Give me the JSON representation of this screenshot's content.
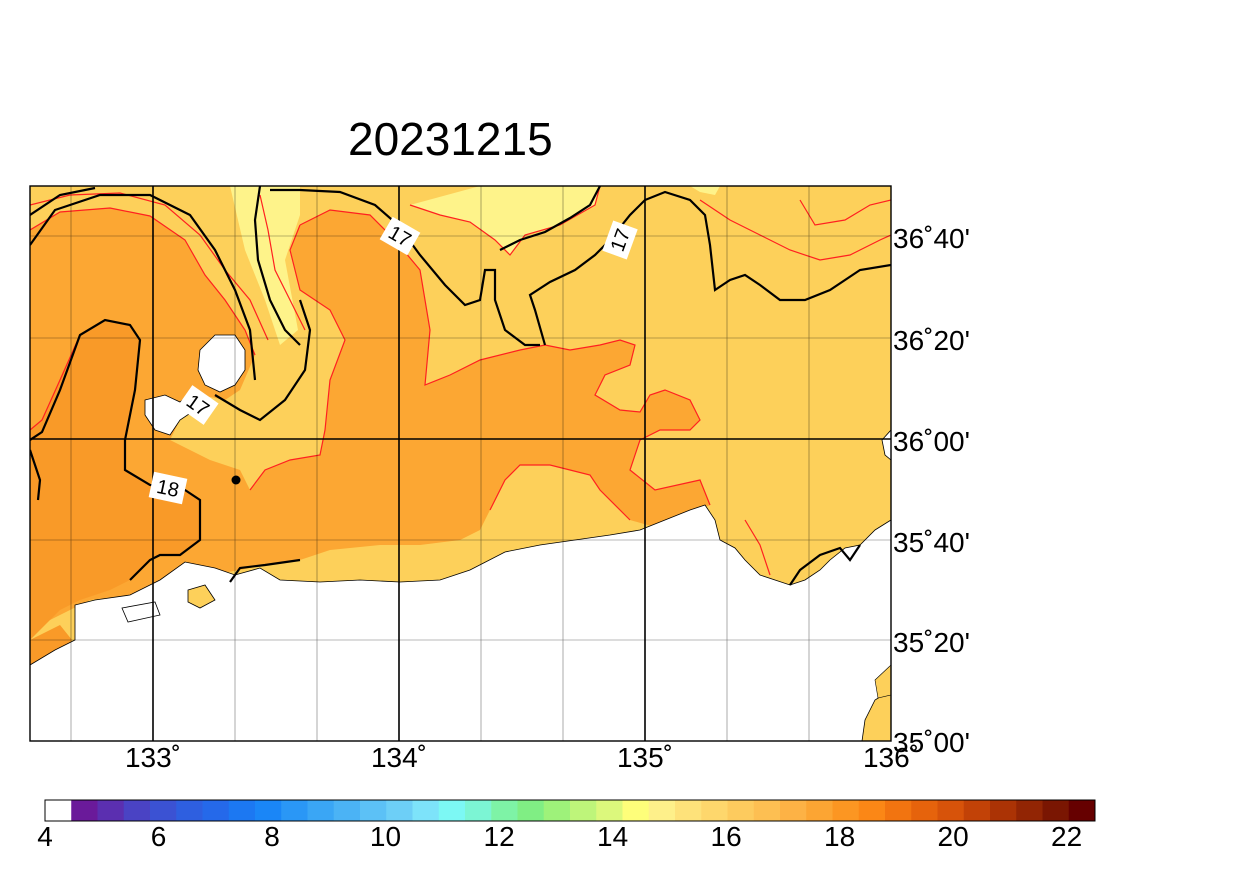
{
  "title": "20231215",
  "map": {
    "lon_range": [
      132.5,
      136.0
    ],
    "lat_range": [
      35.0,
      36.8333
    ],
    "lon_ticks": [
      {
        "value": 133,
        "label": "133˚"
      },
      {
        "value": 134,
        "label": "134˚"
      },
      {
        "value": 135,
        "label": "135˚"
      },
      {
        "value": 136,
        "label": "136˚"
      }
    ],
    "lat_ticks": [
      {
        "value": 36.6667,
        "label": "36˚40'"
      },
      {
        "value": 36.3333,
        "label": "36˚20'"
      },
      {
        "value": 36.0,
        "label": "36˚00'"
      },
      {
        "value": 35.6667,
        "label": "35˚40'"
      },
      {
        "value": 35.3333,
        "label": "35˚20'"
      },
      {
        "value": 35.0,
        "label": "35˚00'"
      }
    ],
    "contour_labels": [
      {
        "text": "17",
        "lon": 134.0,
        "lat": 36.67
      },
      {
        "text": "17",
        "lon": 134.9,
        "lat": 36.66
      },
      {
        "text": "17",
        "lon": 133.2,
        "lat": 36.1
      },
      {
        "text": "18",
        "lon": 133.08,
        "lat": 35.84
      }
    ],
    "station_marker": {
      "lon": 133.35,
      "lat": 35.86
    },
    "colors": {
      "land": "#ffffff",
      "t17": "#fdd05a",
      "t16": "#fef38a",
      "t18": "#fca733",
      "t18_5": "#f99a28",
      "isotherm_red": "#ff2020",
      "isotherm_black": "#000000"
    }
  },
  "colorbar": {
    "labels": [
      "4",
      "6",
      "8",
      "10",
      "12",
      "14",
      "16",
      "18",
      "20",
      "22"
    ],
    "label_values": [
      4,
      6,
      8,
      10,
      12,
      14,
      16,
      18,
      20,
      22
    ],
    "min": 4,
    "max": 22.5,
    "step": 0.5,
    "colors": [
      "#ffffff",
      "#6a1a9a",
      "#5b2fb0",
      "#4a43c4",
      "#3b52d3",
      "#2e5fe0",
      "#2569ea",
      "#1c78f2",
      "#1a86f7",
      "#2a97f6",
      "#3aa6f5",
      "#4bb3f5",
      "#5cc1f6",
      "#6dcff7",
      "#7de3fa",
      "#7cf8f4",
      "#7cf5d4",
      "#7ef3a6",
      "#80ee84",
      "#9ef27a",
      "#bef57a",
      "#dcf87c",
      "#fefe7a",
      "#fef08a",
      "#fee27a",
      "#fed76c",
      "#fdcb5e",
      "#fdbf52",
      "#fdb245",
      "#fca533",
      "#fc9622",
      "#fb8716",
      "#f27410",
      "#e6630c",
      "#d7530a",
      "#c24207",
      "#ab3305",
      "#922504",
      "#7a1602",
      "#660000"
    ]
  }
}
